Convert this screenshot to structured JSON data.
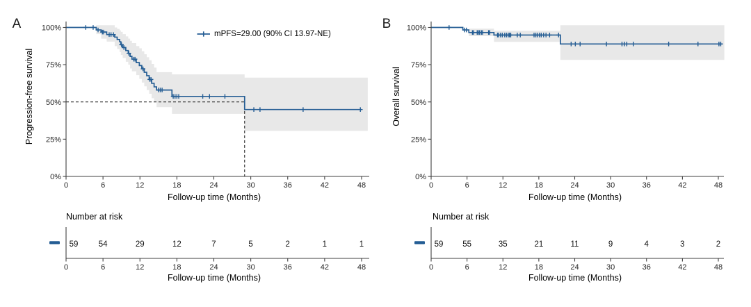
{
  "figure": {
    "background": "#ffffff",
    "colors": {
      "curve": "#245d94",
      "ci_band": "#e8e8e8",
      "axis": "#3f3f3f",
      "tick_text": "#262626",
      "label_text": "#000000",
      "dashed_reference": "#1a1a1a"
    }
  },
  "chart_data": [
    {
      "type": "line",
      "subtype": "kaplan_meier_step_with_ci",
      "panel_label": "A",
      "ylabel": "Progression-free survival",
      "xlabel": "Follow-up time (Months)",
      "legend_label": "mPFS=29.00 (90% CI 13.97-NE)",
      "xlim": [
        0,
        48
      ],
      "ylim": [
        0,
        100
      ],
      "x_ticks": [
        0,
        6,
        12,
        18,
        24,
        30,
        36,
        42,
        48
      ],
      "y_ticks": [
        {
          "value": 100,
          "label": "100%"
        },
        {
          "value": 75,
          "label": "75%"
        },
        {
          "value": 50,
          "label": "50%"
        },
        {
          "value": 25,
          "label": "25%"
        },
        {
          "value": 0,
          "label": "0%"
        }
      ],
      "median_reference": {
        "time": 29,
        "survival_pct": 50
      },
      "steps": [
        [
          0,
          100
        ],
        [
          4.9,
          98.3
        ],
        [
          5.7,
          96.9
        ],
        [
          6.6,
          95.2
        ],
        [
          7.9,
          93.5
        ],
        [
          8.3,
          91.9
        ],
        [
          8.7,
          90.4
        ],
        [
          8.9,
          88.4
        ],
        [
          9.2,
          86.5
        ],
        [
          9.7,
          84.5
        ],
        [
          10.1,
          82.6
        ],
        [
          10.4,
          80.6
        ],
        [
          10.7,
          78.7
        ],
        [
          11.4,
          76.4
        ],
        [
          11.9,
          74.4
        ],
        [
          12.3,
          72.2
        ],
        [
          12.7,
          69.9
        ],
        [
          13.1,
          67.6
        ],
        [
          13.5,
          65.1
        ],
        [
          13.9,
          62.5
        ],
        [
          14.3,
          60.1
        ],
        [
          14.7,
          58.0
        ],
        [
          17.2,
          53.7
        ],
        [
          29,
          44.9
        ]
      ],
      "curve_end": 48.0,
      "censor_points": [
        [
          3.2,
          100
        ],
        [
          4.4,
          100
        ],
        [
          5.2,
          98.3
        ],
        [
          5.9,
          96.9
        ],
        [
          6.1,
          96.9
        ],
        [
          7.0,
          95.2
        ],
        [
          7.3,
          95.2
        ],
        [
          7.7,
          95.2
        ],
        [
          9.0,
          88.4
        ],
        [
          9.4,
          86.5
        ],
        [
          10.2,
          82.6
        ],
        [
          11.0,
          78.7
        ],
        [
          11.2,
          78.7
        ],
        [
          12.5,
          72.2
        ],
        [
          13.6,
          65.1
        ],
        [
          13.8,
          65.1
        ],
        [
          15.0,
          58.0
        ],
        [
          15.3,
          58.0
        ],
        [
          15.6,
          58.0
        ],
        [
          17.4,
          53.7
        ],
        [
          17.7,
          53.7
        ],
        [
          18.0,
          53.7
        ],
        [
          18.3,
          53.7
        ],
        [
          22.2,
          53.7
        ],
        [
          23.3,
          53.7
        ],
        [
          25.8,
          53.7
        ],
        [
          30.5,
          44.9
        ],
        [
          31.5,
          44.9
        ],
        [
          38.5,
          44.9
        ],
        [
          47.8,
          44.9
        ]
      ],
      "ci_band": [
        [
          4.9,
          101.5,
          95.5
        ],
        [
          5.7,
          101.5,
          92.5
        ],
        [
          6.6,
          101.5,
          90.5
        ],
        [
          7.9,
          100,
          87.5
        ],
        [
          8.3,
          99,
          85.5
        ],
        [
          8.7,
          98,
          83.5
        ],
        [
          8.9,
          97,
          81.5
        ],
        [
          9.2,
          95.5,
          79.5
        ],
        [
          9.7,
          94,
          77
        ],
        [
          10.1,
          92.5,
          75
        ],
        [
          10.4,
          91,
          72.5
        ],
        [
          10.7,
          89.5,
          70.5
        ],
        [
          11.4,
          87.5,
          68
        ],
        [
          11.9,
          86,
          65.5
        ],
        [
          12.3,
          84,
          63
        ],
        [
          12.7,
          82,
          60.5
        ],
        [
          13.1,
          80,
          58
        ],
        [
          13.5,
          78,
          55.5
        ],
        [
          13.9,
          75.5,
          52.5
        ],
        [
          14.3,
          73,
          50
        ],
        [
          14.7,
          70,
          46.5
        ],
        [
          17.2,
          68.5,
          42
        ],
        [
          29,
          66.3,
          30.6
        ]
      ],
      "ci_end": 49,
      "number_at_risk": {
        "title": "Number at risk",
        "times": [
          0,
          6,
          12,
          18,
          24,
          30,
          36,
          42,
          48
        ],
        "values": [
          "59",
          "54",
          "29",
          "12",
          "7",
          "5",
          "2",
          "1",
          "1"
        ]
      }
    },
    {
      "type": "line",
      "subtype": "kaplan_meier_step_with_ci",
      "panel_label": "B",
      "ylabel": "Overall survival",
      "xlabel": "Follow-up time (Months)",
      "xlim": [
        0,
        48
      ],
      "ylim": [
        0,
        100
      ],
      "x_ticks": [
        0,
        6,
        12,
        18,
        24,
        30,
        36,
        42,
        48
      ],
      "y_ticks": [
        {
          "value": 100,
          "label": "100%"
        },
        {
          "value": 75,
          "label": "75%"
        },
        {
          "value": 50,
          "label": "50%"
        },
        {
          "value": 25,
          "label": "25%"
        },
        {
          "value": 0,
          "label": "0%"
        }
      ],
      "steps": [
        [
          0,
          100
        ],
        [
          5.3,
          98.3
        ],
        [
          6.3,
          96.6
        ],
        [
          10.5,
          94.9
        ],
        [
          21.6,
          88.9
        ]
      ],
      "curve_end": 48.6,
      "censor_points": [
        [
          3.0,
          100
        ],
        [
          5.6,
          98.3
        ],
        [
          5.9,
          98.3
        ],
        [
          6.9,
          96.6
        ],
        [
          7.1,
          96.6
        ],
        [
          7.7,
          96.6
        ],
        [
          7.9,
          96.6
        ],
        [
          8.1,
          96.6
        ],
        [
          8.4,
          96.6
        ],
        [
          8.6,
          96.6
        ],
        [
          9.6,
          96.6
        ],
        [
          9.8,
          96.6
        ],
        [
          11.1,
          94.9
        ],
        [
          11.3,
          94.9
        ],
        [
          11.6,
          94.9
        ],
        [
          11.9,
          94.9
        ],
        [
          12.3,
          94.9
        ],
        [
          12.6,
          94.9
        ],
        [
          12.9,
          94.9
        ],
        [
          13.1,
          94.9
        ],
        [
          13.3,
          94.9
        ],
        [
          14.4,
          94.9
        ],
        [
          14.9,
          94.9
        ],
        [
          17.2,
          94.9
        ],
        [
          17.5,
          94.9
        ],
        [
          17.8,
          94.9
        ],
        [
          18.1,
          94.9
        ],
        [
          18.4,
          94.9
        ],
        [
          18.8,
          94.9
        ],
        [
          19.2,
          94.9
        ],
        [
          19.8,
          94.9
        ],
        [
          21.3,
          94.9
        ],
        [
          23.4,
          88.9
        ],
        [
          24.1,
          88.9
        ],
        [
          24.9,
          88.9
        ],
        [
          29.3,
          88.9
        ],
        [
          31.9,
          88.9
        ],
        [
          32.3,
          88.9
        ],
        [
          32.7,
          88.9
        ],
        [
          33.8,
          88.9
        ],
        [
          39.7,
          88.9
        ],
        [
          44.6,
          88.9
        ],
        [
          48.1,
          88.9
        ],
        [
          48.4,
          88.9
        ]
      ],
      "ci_band": [
        [
          6.3,
          99.2,
          94.2
        ],
        [
          10.5,
          97.8,
          90.3
        ],
        [
          21.6,
          101.5,
          78.2
        ]
      ],
      "ci_end": 49,
      "number_at_risk": {
        "title": "Number at risk",
        "times": [
          0,
          6,
          12,
          18,
          24,
          30,
          36,
          42,
          48
        ],
        "values": [
          "59",
          "55",
          "35",
          "21",
          "11",
          "9",
          "4",
          "3",
          "2"
        ]
      }
    }
  ]
}
